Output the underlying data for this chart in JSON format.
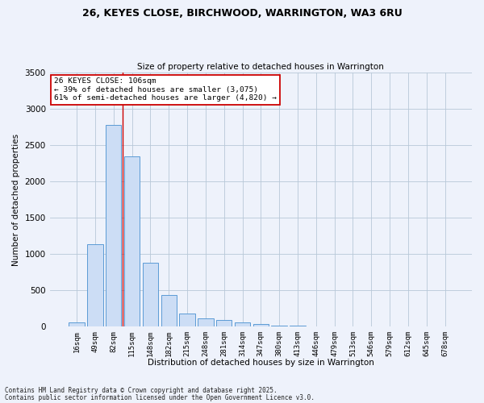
{
  "title1": "26, KEYES CLOSE, BIRCHWOOD, WARRINGTON, WA3 6RU",
  "title2": "Size of property relative to detached houses in Warrington",
  "xlabel": "Distribution of detached houses by size in Warrington",
  "ylabel": "Number of detached properties",
  "categories": [
    "16sqm",
    "49sqm",
    "82sqm",
    "115sqm",
    "148sqm",
    "182sqm",
    "215sqm",
    "248sqm",
    "281sqm",
    "314sqm",
    "347sqm",
    "380sqm",
    "413sqm",
    "446sqm",
    "479sqm",
    "513sqm",
    "546sqm",
    "579sqm",
    "612sqm",
    "645sqm",
    "678sqm"
  ],
  "values": [
    55,
    1130,
    2780,
    2350,
    880,
    440,
    175,
    110,
    90,
    55,
    30,
    10,
    10,
    5,
    3,
    2,
    2,
    1,
    1,
    0,
    0
  ],
  "bar_color": "#ccddf5",
  "bar_edge_color": "#5b9bd5",
  "grid_color": "#b8c8d8",
  "bg_color": "#eef2fb",
  "vline_color": "#cc0000",
  "vline_pos": 2.5,
  "annotation_text": "26 KEYES CLOSE: 106sqm\n← 39% of detached houses are smaller (3,075)\n61% of semi-detached houses are larger (4,820) →",
  "annotation_box_color": "#cc0000",
  "footnote1": "Contains HM Land Registry data © Crown copyright and database right 2025.",
  "footnote2": "Contains public sector information licensed under the Open Government Licence v3.0.",
  "ylim": [
    0,
    3500
  ],
  "yticks": [
    0,
    500,
    1000,
    1500,
    2000,
    2500,
    3000,
    3500
  ]
}
